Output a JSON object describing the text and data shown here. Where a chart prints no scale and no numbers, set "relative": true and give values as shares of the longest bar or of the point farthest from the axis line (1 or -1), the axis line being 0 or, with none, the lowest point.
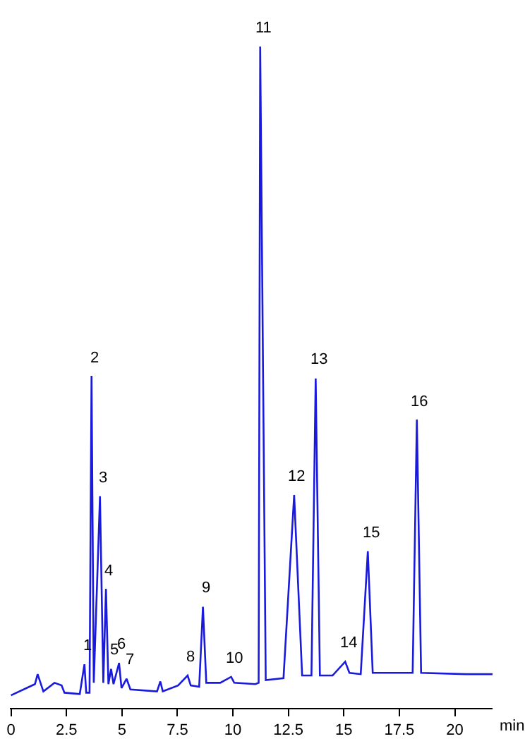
{
  "chart_data": {
    "type": "line",
    "relative": true,
    "xlabel": "min",
    "xlim": [
      -0.05,
      21.7
    ],
    "xticks": [
      0,
      {
        "value": 2.5,
        "label": "2.5"
      },
      5,
      {
        "value": 7.5,
        "label": "7.5"
      },
      10,
      {
        "value": 12.5,
        "label": "12.5"
      },
      15,
      {
        "value": 17.5,
        "label": "17.5"
      },
      20
    ],
    "marker": "none",
    "line_style": "solid",
    "x": [
      0.0,
      1.08,
      1.2,
      1.46,
      1.96,
      2.28,
      2.41,
      3.1,
      3.31,
      3.39,
      3.54,
      3.63,
      3.73,
      4.01,
      4.16,
      4.28,
      4.39,
      4.51,
      4.62,
      4.87,
      4.98,
      5.21,
      5.38,
      6.58,
      6.73,
      6.84,
      7.53,
      7.96,
      8.1,
      8.48,
      8.65,
      8.8,
      9.43,
      9.92,
      10.06,
      11.01,
      11.16,
      11.23,
      11.48,
      12.28,
      12.76,
      13.12,
      13.54,
      13.73,
      13.92,
      14.49,
      15.06,
      15.25,
      15.76,
      16.08,
      16.3,
      17.03,
      18.1,
      18.29,
      18.48,
      20.51,
      21.7
    ],
    "series": [
      {
        "color": "#1a1adb",
        "values": [
          0.019,
          0.036,
          0.051,
          0.025,
          0.038,
          0.034,
          0.023,
          0.021,
          0.066,
          0.023,
          0.023,
          0.502,
          0.038,
          0.32,
          0.038,
          0.18,
          0.036,
          0.059,
          0.036,
          0.068,
          0.03,
          0.044,
          0.028,
          0.025,
          0.04,
          0.025,
          0.034,
          0.049,
          0.034,
          0.032,
          0.153,
          0.038,
          0.038,
          0.047,
          0.038,
          0.036,
          0.038,
          1.0,
          0.042,
          0.045,
          0.322,
          0.049,
          0.049,
          0.498,
          0.049,
          0.049,
          0.07,
          0.053,
          0.051,
          0.237,
          0.053,
          0.053,
          0.053,
          0.436,
          0.053,
          0.051,
          0.051
        ]
      }
    ],
    "annotations": [
      {
        "text": "1",
        "x": 3.31,
        "y": 0.066
      },
      {
        "text": "2",
        "x": 3.63,
        "y": 0.502
      },
      {
        "text": "3",
        "x": 4.01,
        "y": 0.32
      },
      {
        "text": "4",
        "x": 4.28,
        "y": 0.18
      },
      {
        "text": "5",
        "x": 4.51,
        "y": 0.059
      },
      {
        "text": "6",
        "x": 4.87,
        "y": 0.068
      },
      {
        "text": "7",
        "x": 5.21,
        "y": 0.044
      },
      {
        "text": "8",
        "x": 7.96,
        "y": 0.049
      },
      {
        "text": "9",
        "x": 8.65,
        "y": 0.153
      },
      {
        "text": "10",
        "x": 9.92,
        "y": 0.047
      },
      {
        "text": "11",
        "x": 11.23,
        "y": 1.0
      },
      {
        "text": "12",
        "x": 12.76,
        "y": 0.322
      },
      {
        "text": "13",
        "x": 13.73,
        "y": 0.498
      },
      {
        "text": "14",
        "x": 15.06,
        "y": 0.07
      },
      {
        "text": "15",
        "x": 16.08,
        "y": 0.237
      },
      {
        "text": "16",
        "x": 18.29,
        "y": 0.436
      }
    ]
  }
}
